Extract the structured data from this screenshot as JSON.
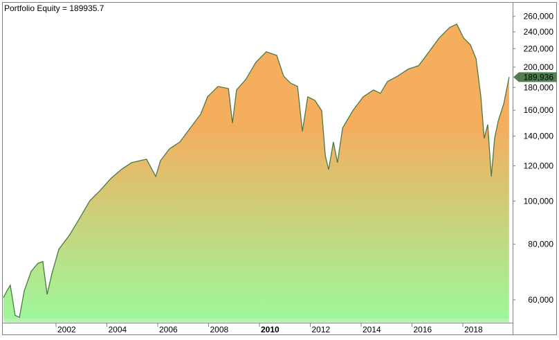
{
  "chart_data": {
    "type": "area",
    "title": "Portfolio Equity = 189935.7",
    "last_value_label": "189,936",
    "y_scale": "log",
    "ylim": [
      53300,
      280000
    ],
    "xlim": [
      1999.9,
      2019.85
    ],
    "grid": false,
    "legend": "none",
    "y_ticks": [
      {
        "value": 60000,
        "label": "60,000"
      },
      {
        "value": 80000,
        "label": "80,000"
      },
      {
        "value": 100000,
        "label": "100,000"
      },
      {
        "value": 120000,
        "label": "120,000"
      },
      {
        "value": 140000,
        "label": "140,000"
      },
      {
        "value": 160000,
        "label": "160,000"
      },
      {
        "value": 180000,
        "label": "180,000"
      },
      {
        "value": 200000,
        "label": "200,000"
      },
      {
        "value": 220000,
        "label": "220,000"
      },
      {
        "value": 240000,
        "label": "240,000"
      },
      {
        "value": 260000,
        "label": "260,000"
      }
    ],
    "x_ticks": [
      {
        "value": 2002,
        "label": "2002",
        "bold": false
      },
      {
        "value": 2004,
        "label": "2004",
        "bold": false
      },
      {
        "value": 2006,
        "label": "2006",
        "bold": false
      },
      {
        "value": 2008,
        "label": "2008",
        "bold": false
      },
      {
        "value": 2010,
        "label": "2010",
        "bold": true
      },
      {
        "value": 2012,
        "label": "2012",
        "bold": false
      },
      {
        "value": 2014,
        "label": "2014",
        "bold": false
      },
      {
        "value": 2016,
        "label": "2016",
        "bold": false
      },
      {
        "value": 2018,
        "label": "2018",
        "bold": false
      }
    ],
    "colors": {
      "line": "#4a7a44",
      "fill_top": "#f5ad5e",
      "fill_bottom": "#9ef79a",
      "label_bg": "#4f7f4c"
    },
    "series": [
      {
        "x": [
          1999.93,
          2000.07,
          2000.2,
          2000.39,
          2000.56,
          2000.75,
          2001.02,
          2001.29,
          2001.48,
          2001.65,
          2001.84,
          2002.11,
          2002.52,
          2002.93,
          2003.33,
          2003.74,
          2004.15,
          2004.56,
          2004.97,
          2005.56,
          2005.92,
          2006.11,
          2006.46,
          2006.87,
          2007.28,
          2007.69,
          2007.96,
          2008.37,
          2008.78,
          2008.94,
          2009.1,
          2009.46,
          2009.86,
          2010.27,
          2010.68,
          2010.95,
          2011.22,
          2011.5,
          2011.69,
          2011.9,
          2012.18,
          2012.45,
          2012.59,
          2012.72,
          2012.91,
          2013.07,
          2013.27,
          2013.67,
          2014.08,
          2014.49,
          2014.76,
          2015.03,
          2015.44,
          2015.85,
          2016.26,
          2016.67,
          2017.07,
          2017.48,
          2017.76,
          2018.03,
          2018.3,
          2018.52,
          2018.71,
          2018.84,
          2018.98,
          2019.12,
          2019.25,
          2019.39,
          2019.61,
          2019.82
        ],
        "y": [
          60650,
          62900,
          64700,
          55400,
          54800,
          62900,
          69500,
          72500,
          73100,
          61700,
          68800,
          77900,
          83700,
          91600,
          100200,
          105700,
          112300,
          117700,
          122000,
          124200,
          113600,
          123300,
          131000,
          135800,
          145900,
          156800,
          171500,
          181000,
          179000,
          149700,
          177700,
          187600,
          205100,
          216500,
          212600,
          191000,
          184200,
          181000,
          143400,
          171500,
          168400,
          159600,
          126500,
          117700,
          135800,
          122000,
          145900,
          159600,
          171500,
          177700,
          174600,
          185600,
          191000,
          197900,
          201500,
          216500,
          232600,
          245500,
          249800,
          232600,
          224400,
          208900,
          171500,
          138300,
          148600,
          113600,
          138300,
          151300,
          165500,
          189936
        ]
      }
    ]
  }
}
